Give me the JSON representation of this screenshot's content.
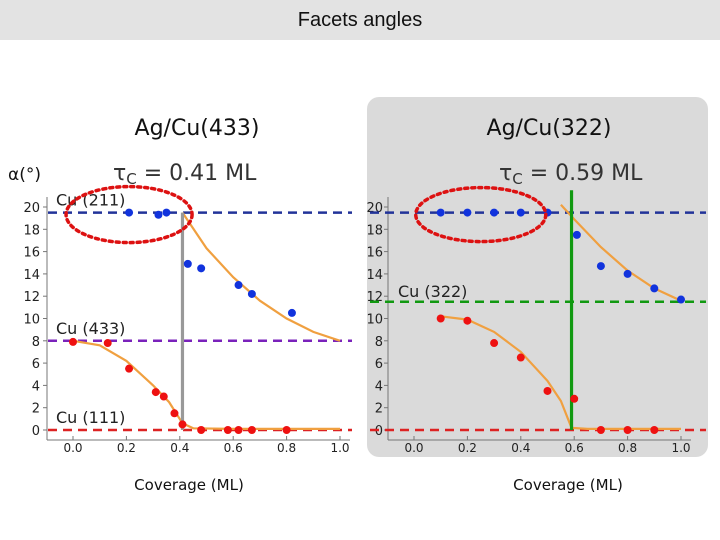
{
  "slide": {
    "title": "Facets angles"
  },
  "y_axis_label": "α(°)",
  "colors": {
    "fit": "#f0a040",
    "blue": "#1133dd",
    "red": "#ee1111",
    "navy_dash": "#223399",
    "purple_dash": "#7a22bb",
    "red_dash": "#dd2222",
    "green": "#119911",
    "gray": "#999999",
    "ellipse": "#dd1111",
    "panel_bg": "#dadada"
  },
  "chart_data": [
    {
      "type": "scatter",
      "title": "Ag/Cu(433)",
      "tau_label": "τ",
      "tau_subscript": "C",
      "tau_value": " = 0.41 ML",
      "tau_c": 0.41,
      "xlabel": "Coverage (ML)",
      "ylabel": "α(°)",
      "xlim": [
        0,
        1
      ],
      "ylim": [
        0,
        20
      ],
      "xticks": [
        0.0,
        0.2,
        0.4,
        0.6,
        0.8,
        1.0
      ],
      "xtick_labels": [
        "0.0",
        "0.2",
        "0.4",
        "0.6",
        "0.8",
        "1.0"
      ],
      "yticks": [
        0,
        2,
        4,
        6,
        8,
        10,
        12,
        14,
        16,
        18,
        20
      ],
      "ytick_labels": [
        "0",
        "2",
        "4",
        "6",
        "8",
        "10",
        "12",
        "14",
        "16",
        "18",
        "20"
      ],
      "series": [
        {
          "name": "blue",
          "color": "#1133dd",
          "points": [
            [
              0.21,
              19.5
            ],
            [
              0.32,
              19.3
            ],
            [
              0.35,
              19.5
            ],
            [
              0.43,
              14.9
            ],
            [
              0.48,
              14.5
            ],
            [
              0.62,
              13.0
            ],
            [
              0.67,
              12.2
            ],
            [
              0.82,
              10.5
            ]
          ]
        },
        {
          "name": "red",
          "color": "#ee1111",
          "points": [
            [
              0.0,
              7.9
            ],
            [
              0.13,
              7.8
            ],
            [
              0.21,
              5.5
            ],
            [
              0.31,
              3.4
            ],
            [
              0.34,
              3.0
            ],
            [
              0.38,
              1.5
            ],
            [
              0.41,
              0.5
            ],
            [
              0.48,
              0.0
            ],
            [
              0.58,
              0.0
            ],
            [
              0.62,
              0.0
            ],
            [
              0.67,
              0.0
            ],
            [
              0.8,
              0.0
            ]
          ]
        }
      ],
      "fits": [
        {
          "color": "#f0a040",
          "points": [
            [
              0,
              8
            ],
            [
              0.1,
              7.6
            ],
            [
              0.2,
              6.2
            ],
            [
              0.3,
              4.0
            ],
            [
              0.36,
              2.5
            ],
            [
              0.41,
              0.6
            ],
            [
              0.45,
              0.15
            ],
            [
              0.6,
              0.1
            ],
            [
              1.0,
              0.1
            ]
          ]
        },
        {
          "color": "#f0a040",
          "points": [
            [
              0.41,
              19.5
            ],
            [
              0.5,
              16.3
            ],
            [
              0.6,
              13.7
            ],
            [
              0.7,
              11.6
            ],
            [
              0.8,
              10.0
            ],
            [
              0.9,
              8.8
            ],
            [
              1.0,
              8.0
            ]
          ]
        }
      ],
      "hlines": [
        {
          "y": 19.5,
          "color": "#223399",
          "label": "Cu (211)"
        },
        {
          "y": 8.0,
          "color": "#7a22bb",
          "label": "Cu (433)"
        },
        {
          "y": 0.0,
          "color": "#dd2222",
          "label": "Cu (111)"
        }
      ],
      "vline": {
        "x": 0.41,
        "y0": 0,
        "y1": 19.5,
        "color": "#999999"
      },
      "highlight": {
        "x": 0.21,
        "y": 19.5
      }
    },
    {
      "type": "scatter",
      "title": "Ag/Cu(322)",
      "tau_label": "τ",
      "tau_subscript": "C",
      "tau_value": " = 0.59 ML",
      "tau_c": 0.59,
      "xlabel": "Coverage (ML)",
      "ylabel": "",
      "xlim": [
        0,
        1
      ],
      "ylim": [
        0,
        20
      ],
      "xticks": [
        0.0,
        0.2,
        0.4,
        0.6,
        0.8,
        1.0
      ],
      "xtick_labels": [
        "0.0",
        "0.2",
        "0.4",
        "0.6",
        "0.8",
        "1.0"
      ],
      "yticks": [
        0,
        2,
        4,
        6,
        8,
        10,
        12,
        14,
        16,
        18,
        20
      ],
      "ytick_labels": [
        "0",
        "2",
        "4",
        "6",
        "8",
        "10",
        "12",
        "14",
        "16",
        "18",
        "20"
      ],
      "series": [
        {
          "name": "blue",
          "color": "#1133dd",
          "points": [
            [
              0.1,
              19.5
            ],
            [
              0.2,
              19.5
            ],
            [
              0.3,
              19.5
            ],
            [
              0.4,
              19.5
            ],
            [
              0.5,
              19.5
            ],
            [
              0.61,
              17.5
            ],
            [
              0.7,
              14.7
            ],
            [
              0.8,
              14.0
            ],
            [
              0.9,
              12.7
            ],
            [
              1.0,
              11.7
            ]
          ]
        },
        {
          "name": "red",
          "color": "#ee1111",
          "points": [
            [
              0.1,
              10.0
            ],
            [
              0.2,
              9.8
            ],
            [
              0.3,
              7.8
            ],
            [
              0.4,
              6.5
            ],
            [
              0.5,
              3.5
            ],
            [
              0.6,
              2.8
            ],
            [
              0.7,
              0.0
            ],
            [
              0.8,
              0.0
            ],
            [
              0.9,
              0.0
            ]
          ]
        }
      ],
      "fits": [
        {
          "color": "#f0a040",
          "points": [
            [
              0.1,
              10.2
            ],
            [
              0.2,
              9.9
            ],
            [
              0.3,
              8.8
            ],
            [
              0.4,
              7.0
            ],
            [
              0.5,
              4.4
            ],
            [
              0.55,
              2.6
            ],
            [
              0.59,
              0.2
            ],
            [
              0.65,
              0.1
            ],
            [
              1.0,
              0.1
            ]
          ]
        },
        {
          "color": "#f0a040",
          "points": [
            [
              0.55,
              20.2
            ],
            [
              0.6,
              18.9
            ],
            [
              0.7,
              16.4
            ],
            [
              0.8,
              14.3
            ],
            [
              0.9,
              12.7
            ],
            [
              1.0,
              11.6
            ]
          ]
        }
      ],
      "hlines": [
        {
          "y": 19.5,
          "color": "#223399",
          "label": ""
        },
        {
          "y": 11.5,
          "color": "#119911",
          "label": "Cu (322)"
        },
        {
          "y": 0.0,
          "color": "#dd2222",
          "label": ""
        }
      ],
      "vline": {
        "x": 0.59,
        "y0": 0,
        "y1": 21.5,
        "color": "#119911"
      },
      "highlight": {
        "x": 0.25,
        "y": 19.5
      }
    }
  ]
}
